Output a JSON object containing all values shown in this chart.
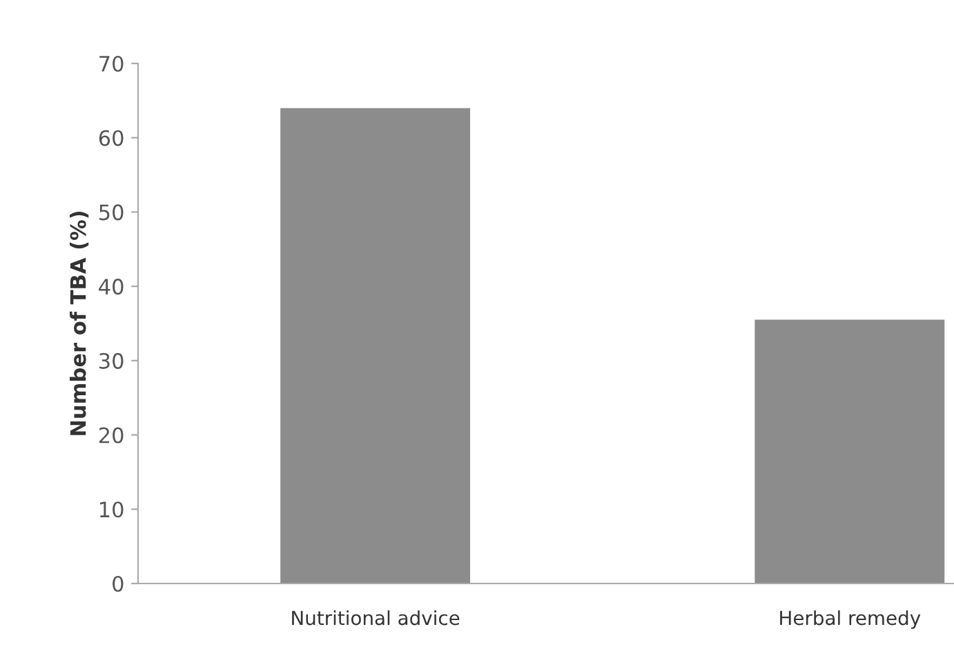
{
  "chart_data": {
    "type": "bar",
    "ylabel": "Number of TBA (%)",
    "categories": [
      "Nutritional advice",
      "Herbal remedy"
    ],
    "values": [
      64,
      35.5
    ],
    "color": "#8c8c8c",
    "ylim": [
      0,
      70
    ],
    "yticks": [
      0,
      10,
      20,
      30,
      40,
      50,
      60,
      70
    ],
    "grid": false
  }
}
